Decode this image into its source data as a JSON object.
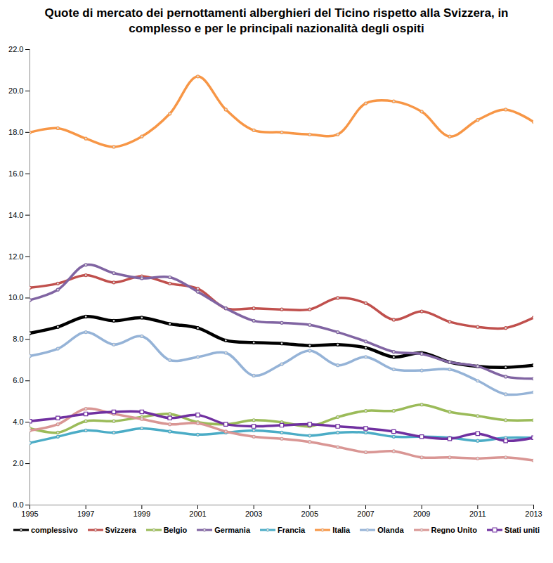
{
  "chart_data": {
    "type": "line",
    "title": "Quote di mercato dei pernottamenti alberghieri del Ticino rispetto alla Svizzera, in complesso e per le principali nazionalità degli ospiti",
    "x": [
      1995,
      1996,
      1997,
      1998,
      1999,
      2000,
      2001,
      2002,
      2003,
      2004,
      2005,
      2006,
      2007,
      2008,
      2009,
      2010,
      2011,
      2012,
      2013
    ],
    "xlim": [
      1995,
      2013
    ],
    "xticks": [
      1995,
      1997,
      1999,
      2001,
      2003,
      2005,
      2007,
      2009,
      2011,
      2013
    ],
    "ylim": [
      0,
      22
    ],
    "yticks": [
      {
        "value": 0,
        "label": "0.0"
      },
      {
        "value": 2,
        "label": "2.0"
      },
      {
        "value": 4,
        "label": "4.0"
      },
      {
        "value": 6,
        "label": "6.0"
      },
      {
        "value": 8,
        "label": "8.0"
      },
      {
        "value": 10,
        "label": "10.0"
      },
      {
        "value": 12,
        "label": "12.0"
      },
      {
        "value": 14,
        "label": "14.0"
      },
      {
        "value": 16,
        "label": "16.0"
      },
      {
        "value": 18,
        "label": "18.0"
      },
      {
        "value": 20,
        "label": "20.0"
      },
      {
        "value": 22,
        "label": "22.0"
      }
    ],
    "grid": false,
    "legend": "bottom",
    "series": [
      {
        "name": "complessivo",
        "color": "#000000",
        "marker": "circle",
        "values": [
          8.3,
          8.6,
          9.1,
          8.9,
          9.05,
          8.75,
          8.55,
          7.95,
          7.85,
          7.8,
          7.7,
          7.75,
          7.6,
          7.15,
          7.35,
          6.9,
          6.7,
          6.65,
          6.75
        ]
      },
      {
        "name": "Svizzera",
        "color": "#c0504d",
        "marker": "circle",
        "values": [
          10.5,
          10.7,
          11.1,
          10.75,
          11.05,
          10.7,
          10.45,
          9.5,
          9.5,
          9.45,
          9.45,
          10.0,
          9.75,
          8.95,
          9.35,
          8.85,
          8.6,
          8.55,
          9.05
        ]
      },
      {
        "name": "Belgio",
        "color": "#9bbb59",
        "marker": "circle",
        "values": [
          3.7,
          3.5,
          4.05,
          4.05,
          4.25,
          4.4,
          4.0,
          3.9,
          4.1,
          4.0,
          3.8,
          4.25,
          4.55,
          4.55,
          4.85,
          4.5,
          4.3,
          4.1,
          4.1
        ]
      },
      {
        "name": "Germania",
        "color": "#8064a2",
        "marker": "circle",
        "values": [
          9.9,
          10.4,
          11.6,
          11.2,
          10.95,
          11.0,
          10.3,
          9.5,
          8.9,
          8.8,
          8.7,
          8.35,
          7.9,
          7.4,
          7.3,
          6.9,
          6.7,
          6.2,
          6.1
        ]
      },
      {
        "name": "Francia",
        "color": "#4bacc6",
        "marker": "circle",
        "values": [
          3.0,
          3.3,
          3.6,
          3.5,
          3.7,
          3.55,
          3.4,
          3.5,
          3.6,
          3.5,
          3.35,
          3.5,
          3.5,
          3.3,
          3.3,
          3.25,
          3.1,
          3.25,
          3.25
        ]
      },
      {
        "name": "Italia",
        "color": "#f79646",
        "marker": "circle",
        "values": [
          18.0,
          18.2,
          17.7,
          17.3,
          17.8,
          18.9,
          20.7,
          19.1,
          18.1,
          18.0,
          17.9,
          17.9,
          19.4,
          19.5,
          19.0,
          17.8,
          18.6,
          19.1,
          18.5
        ]
      },
      {
        "name": "Olanda",
        "color": "#95b3d7",
        "marker": "circle",
        "values": [
          7.2,
          7.55,
          8.35,
          7.75,
          8.15,
          7.0,
          7.15,
          7.35,
          6.25,
          6.8,
          7.45,
          6.75,
          7.15,
          6.55,
          6.5,
          6.55,
          6.0,
          5.35,
          5.45
        ]
      },
      {
        "name": "Regno Unito",
        "color": "#d99694",
        "marker": "circle",
        "values": [
          3.6,
          3.9,
          4.65,
          4.4,
          4.15,
          3.9,
          3.95,
          3.55,
          3.3,
          3.2,
          3.05,
          2.8,
          2.55,
          2.6,
          2.3,
          2.3,
          2.25,
          2.3,
          2.15
        ]
      },
      {
        "name": "Stati uniti",
        "color": "#7030a0",
        "marker": "square",
        "values": [
          4.05,
          4.2,
          4.4,
          4.5,
          4.5,
          4.2,
          4.35,
          3.9,
          3.8,
          3.85,
          3.9,
          3.8,
          3.7,
          3.55,
          3.3,
          3.2,
          3.45,
          3.1,
          3.25
        ]
      }
    ]
  }
}
